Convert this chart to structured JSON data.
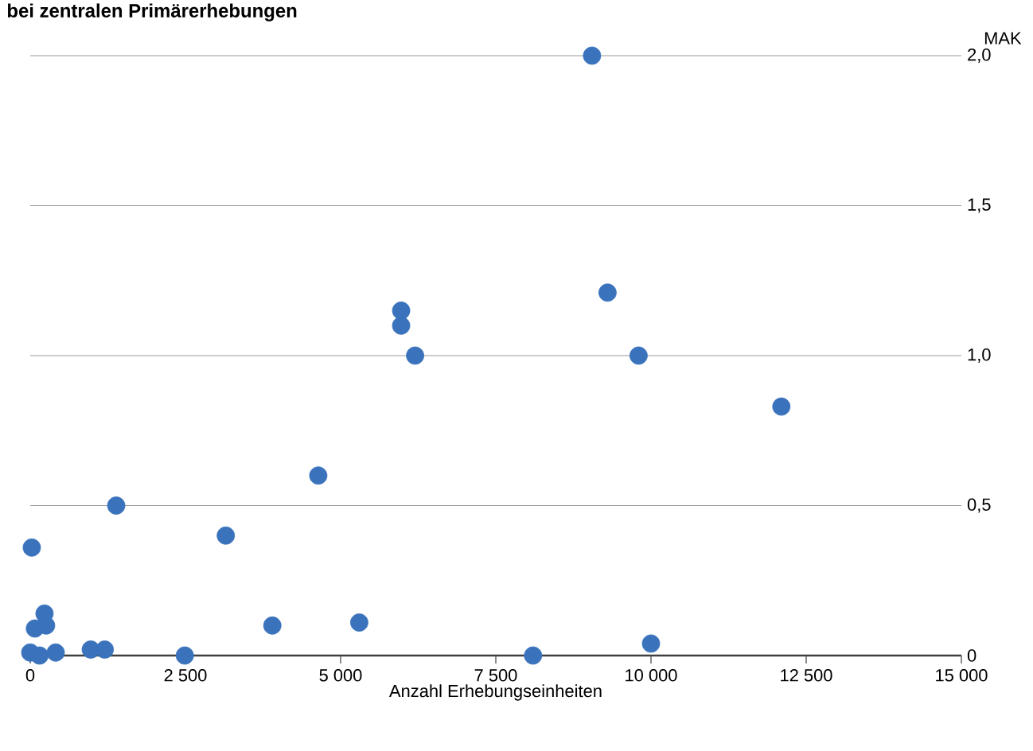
{
  "chart_data": {
    "type": "scatter",
    "title": "bei zentralen Primärerhebungen",
    "xlabel": "Anzahl Erhebungseinheiten",
    "ylabel": "MAK",
    "x": [
      0,
      25,
      75,
      150,
      230,
      255,
      410,
      975,
      1200,
      2490,
      1385,
      3150,
      3900,
      4640,
      5300,
      5975,
      5975,
      6200,
      9300,
      9800,
      12100,
      8100,
      10000,
      9050
    ],
    "series": [
      {
        "color": "#3a72bc",
        "values": [
          0.01,
          0.36,
          0.09,
          0.0,
          0.14,
          0.1,
          0.01,
          0.02,
          0.02,
          0.0,
          0.5,
          0.4,
          0.1,
          0.6,
          0.11,
          1.15,
          1.1,
          1.0,
          1.21,
          1.0,
          0.83,
          0.0,
          0.04,
          2.0
        ]
      }
    ],
    "xlim": [
      0,
      15000
    ],
    "ylim": [
      0,
      2.0
    ],
    "xticks": [
      0,
      {
        "value": 2500,
        "label": "2 500"
      },
      {
        "value": 5000,
        "label": "5 000"
      },
      {
        "value": 7500,
        "label": "7 500"
      },
      {
        "value": 10000,
        "label": "10 000"
      },
      {
        "value": 12500,
        "label": "12 500"
      },
      {
        "value": 15000,
        "label": "15 000"
      }
    ],
    "yticks": [
      0,
      {
        "value": 0.5,
        "label": "0,5"
      },
      {
        "value": 1.0,
        "label": "1,0"
      },
      {
        "value": 1.5,
        "label": "1,5"
      },
      {
        "value": 2.0,
        "label": "2,0"
      }
    ],
    "grid": "y",
    "marker": "circle"
  }
}
